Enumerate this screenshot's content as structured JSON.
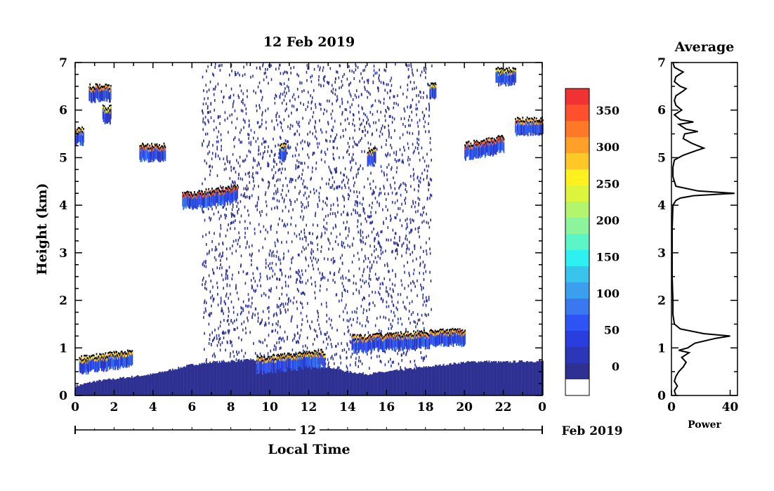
{
  "chart_data": [
    {
      "type": "heatmap",
      "title": "12 Feb 2019",
      "xlabel": "Local Time",
      "ylabel": "Height (km)",
      "xlim": [
        0,
        24
      ],
      "ylim": [
        0,
        7
      ],
      "x_ticks": [
        "0",
        "2",
        "4",
        "6",
        "8",
        "10",
        "12",
        "14",
        "16",
        "18",
        "20",
        "22",
        "0"
      ],
      "y_ticks": [
        "0",
        "1",
        "2",
        "3",
        "4",
        "5",
        "6",
        "7"
      ],
      "date_bar": {
        "day_label": "12",
        "month_label": "Feb 2019"
      },
      "colorbar": {
        "ticks": [
          "0",
          "50",
          "100",
          "150",
          "200",
          "250",
          "300",
          "350"
        ],
        "range": [
          -40,
          380
        ],
        "colors": [
          "#ffffff",
          "#2e3192",
          "#2b36b8",
          "#2a3ee0",
          "#2f54f5",
          "#3a78f0",
          "#3aa0ee",
          "#39c4ec",
          "#2ef0f0",
          "#5cf5c8",
          "#8cf59c",
          "#b4f56e",
          "#dcf53c",
          "#fff020",
          "#ffc828",
          "#ffa028",
          "#ff7828",
          "#ff502d",
          "#f03232"
        ]
      },
      "cloud_layers": [
        {
          "t_start": 0.0,
          "t_end": 0.4,
          "height_km": 5.55,
          "peak": 320
        },
        {
          "t_start": 0.7,
          "t_end": 1.8,
          "height_km": 6.45,
          "peak": 340
        },
        {
          "t_start": 1.4,
          "t_end": 1.8,
          "height_km": 6.0,
          "peak": 300
        },
        {
          "t_start": 3.3,
          "t_end": 4.6,
          "height_km": 5.2,
          "peak": 350
        },
        {
          "t_start": 5.5,
          "t_end": 8.3,
          "height_km": 4.25,
          "peak": 370
        },
        {
          "t_start": 10.5,
          "t_end": 10.8,
          "height_km": 5.2,
          "peak": 300
        },
        {
          "t_start": 15.0,
          "t_end": 15.4,
          "height_km": 5.1,
          "peak": 320
        },
        {
          "t_start": 18.2,
          "t_end": 18.5,
          "height_km": 6.5,
          "peak": 300
        },
        {
          "t_start": 20.0,
          "t_end": 22.0,
          "height_km": 5.3,
          "peak": 360
        },
        {
          "t_start": 21.6,
          "t_end": 22.6,
          "height_km": 6.8,
          "peak": 300
        },
        {
          "t_start": 22.6,
          "t_end": 24.0,
          "height_km": 5.75,
          "peak": 330
        },
        {
          "t_start": 0.2,
          "t_end": 2.9,
          "height_km": 0.8,
          "peak": 310
        },
        {
          "t_start": 9.3,
          "t_end": 12.8,
          "height_km": 0.8,
          "peak": 320
        },
        {
          "t_start": 14.2,
          "t_end": 20.0,
          "height_km": 1.25,
          "peak": 330
        }
      ],
      "noise_region": {
        "t_start": 6.5,
        "t_end": 18.3
      },
      "boundary_layer": [
        {
          "t": 0,
          "top_km": 0.2
        },
        {
          "t": 1,
          "top_km": 0.3
        },
        {
          "t": 2,
          "top_km": 0.35
        },
        {
          "t": 3,
          "top_km": 0.4
        },
        {
          "t": 4,
          "top_km": 0.45
        },
        {
          "t": 5,
          "top_km": 0.55
        },
        {
          "t": 6,
          "top_km": 0.65
        },
        {
          "t": 7,
          "top_km": 0.7
        },
        {
          "t": 8,
          "top_km": 0.72
        },
        {
          "t": 9,
          "top_km": 0.75
        },
        {
          "t": 10,
          "top_km": 0.7
        },
        {
          "t": 11,
          "top_km": 0.7
        },
        {
          "t": 12,
          "top_km": 0.65
        },
        {
          "t": 13,
          "top_km": 0.6
        },
        {
          "t": 14,
          "top_km": 0.5
        },
        {
          "t": 15,
          "top_km": 0.45
        },
        {
          "t": 16,
          "top_km": 0.5
        },
        {
          "t": 17,
          "top_km": 0.55
        },
        {
          "t": 18,
          "top_km": 0.6
        },
        {
          "t": 19,
          "top_km": 0.65
        },
        {
          "t": 20,
          "top_km": 0.7
        },
        {
          "t": 21,
          "top_km": 0.72
        },
        {
          "t": 22,
          "top_km": 0.7
        },
        {
          "t": 23,
          "top_km": 0.72
        },
        {
          "t": 24,
          "top_km": 0.72
        }
      ]
    },
    {
      "type": "line",
      "title": "Average",
      "xlabel": "Power",
      "ylabel": "",
      "xlim": [
        0,
        45
      ],
      "ylim": [
        0,
        7
      ],
      "x_ticks": [
        "0",
        "40"
      ],
      "y_ticks": [
        "0",
        "1",
        "2",
        "3",
        "4",
        "5",
        "6",
        "7"
      ],
      "profile": [
        {
          "h": 0.0,
          "p": 3
        },
        {
          "h": 0.1,
          "p": 2
        },
        {
          "h": 0.2,
          "p": 4
        },
        {
          "h": 0.3,
          "p": 2
        },
        {
          "h": 0.4,
          "p": 3
        },
        {
          "h": 0.5,
          "p": 5
        },
        {
          "h": 0.6,
          "p": 8
        },
        {
          "h": 0.7,
          "p": 10
        },
        {
          "h": 0.8,
          "p": 7
        },
        {
          "h": 0.9,
          "p": 12
        },
        {
          "h": 0.95,
          "p": 5
        },
        {
          "h": 1.0,
          "p": 11
        },
        {
          "h": 1.1,
          "p": 16
        },
        {
          "h": 1.2,
          "p": 30
        },
        {
          "h": 1.25,
          "p": 40
        },
        {
          "h": 1.3,
          "p": 22
        },
        {
          "h": 1.4,
          "p": 6
        },
        {
          "h": 1.5,
          "p": 2
        },
        {
          "h": 1.7,
          "p": 1
        },
        {
          "h": 2.0,
          "p": 1
        },
        {
          "h": 2.5,
          "p": 0.5
        },
        {
          "h": 3.0,
          "p": 0.5
        },
        {
          "h": 3.5,
          "p": 0.5
        },
        {
          "h": 4.0,
          "p": 1
        },
        {
          "h": 4.1,
          "p": 3
        },
        {
          "h": 4.15,
          "p": 6
        },
        {
          "h": 4.2,
          "p": 15
        },
        {
          "h": 4.25,
          "p": 43
        },
        {
          "h": 4.3,
          "p": 18
        },
        {
          "h": 4.4,
          "p": 3
        },
        {
          "h": 4.6,
          "p": 1
        },
        {
          "h": 4.8,
          "p": 1
        },
        {
          "h": 4.95,
          "p": 2
        },
        {
          "h": 5.05,
          "p": 8
        },
        {
          "h": 5.15,
          "p": 17
        },
        {
          "h": 5.2,
          "p": 22
        },
        {
          "h": 5.3,
          "p": 14
        },
        {
          "h": 5.4,
          "p": 8
        },
        {
          "h": 5.5,
          "p": 9
        },
        {
          "h": 5.55,
          "p": 18
        },
        {
          "h": 5.6,
          "p": 10
        },
        {
          "h": 5.7,
          "p": 5
        },
        {
          "h": 5.75,
          "p": 15
        },
        {
          "h": 5.8,
          "p": 6
        },
        {
          "h": 5.9,
          "p": 2
        },
        {
          "h": 6.0,
          "p": 7
        },
        {
          "h": 6.1,
          "p": 3
        },
        {
          "h": 6.2,
          "p": 2
        },
        {
          "h": 6.3,
          "p": 3
        },
        {
          "h": 6.4,
          "p": 8
        },
        {
          "h": 6.45,
          "p": 10
        },
        {
          "h": 6.5,
          "p": 6
        },
        {
          "h": 6.6,
          "p": 2
        },
        {
          "h": 6.7,
          "p": 3
        },
        {
          "h": 6.8,
          "p": 8
        },
        {
          "h": 6.85,
          "p": 5
        },
        {
          "h": 6.9,
          "p": 2
        },
        {
          "h": 7.0,
          "p": 1
        }
      ]
    }
  ]
}
